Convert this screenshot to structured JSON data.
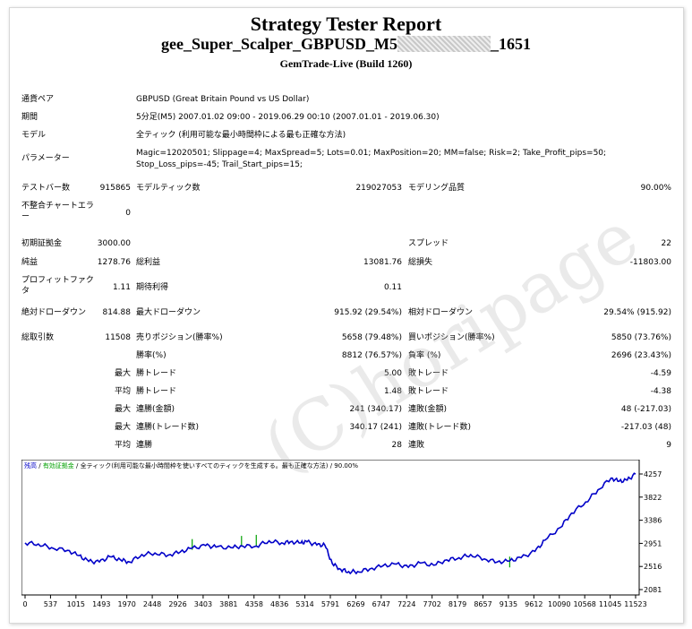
{
  "header": {
    "title": "Strategy Tester Report",
    "ea_name_prefix": "gee_Super_Scalper_GBPUSD_M5",
    "ea_name_suffix": "_1651",
    "build": "GemTrade-Live (Build 1260)"
  },
  "info": {
    "pair_label": "通貨ペア",
    "pair_value": "GBPUSD (Great Britain Pound vs US Dollar)",
    "period_label": "期間",
    "period_value": "5分足(M5) 2007.01.02 09:00 - 2019.06.29 00:10 (2007.01.01 - 2019.06.30)",
    "model_label": "モデル",
    "model_value": "全ティック (利用可能な最小時間枠による最も正確な方法)",
    "params_label": "パラメーター",
    "params_line1": "Magic=12020501; Slippage=4; MaxSpread=5; Lots=0.01; MaxPosition=20; MM=false; Risk=2; Take_Profit_pips=50;",
    "params_line2": "Stop_Loss_pips=-45; Trail_Start_pips=15;"
  },
  "stats": {
    "bars_label": "テストバー数",
    "bars_value": "915865",
    "ticks_label": "モデルティック数",
    "ticks_value": "219027053",
    "quality_label": "モデリング品質",
    "quality_value": "90.00%",
    "mismatch_label": "不整合チャートエラー",
    "mismatch_value": "0",
    "deposit_label": "初期証拠金",
    "deposit_value": "3000.00",
    "spread_label": "スプレッド",
    "spread_value": "22",
    "net_label": "純益",
    "net_value": "1278.76",
    "gross_profit_label": "総利益",
    "gross_profit_value": "13081.76",
    "gross_loss_label": "総損失",
    "gross_loss_value": "-11803.00",
    "pf_label": "プロフィットファクタ",
    "pf_value": "1.11",
    "expected_label": "期待利得",
    "expected_value": "0.11",
    "abs_dd_label": "絶対ドローダウン",
    "abs_dd_value": "814.88",
    "max_dd_label": "最大ドローダウン",
    "max_dd_value": "915.92 (29.54%)",
    "rel_dd_label": "相対ドローダウン",
    "rel_dd_value": "29.54% (915.92)",
    "total_trades_label": "総取引数",
    "total_trades_value": "11508",
    "short_label": "売りポジション(勝率%)",
    "short_value": "5658 (79.48%)",
    "long_label": "買いポジション(勝率%)",
    "long_value": "5850 (73.76%)",
    "win_pct_label": "勝率(%)",
    "win_pct_value": "8812 (76.57%)",
    "loss_pct_label": "負率 (%)",
    "loss_pct_value": "2696 (23.43%)",
    "max_word": "最大",
    "avg_word": "平均",
    "win_trade_label": "勝トレード",
    "max_win_value": "5.00",
    "loss_trade_label": "敗トレード",
    "max_loss_value": "-4.59",
    "avg_win_value": "1.48",
    "avg_loss_value": "-4.38",
    "consec_win_amt_label": "連勝(金額)",
    "consec_win_amt_value": "241 (340.17)",
    "consec_loss_amt_label": "連敗(金額)",
    "consec_loss_amt_value": "48 (-217.03)",
    "consec_win_cnt_label": "連勝(トレード数)",
    "consec_win_cnt_value": "340.17 (241)",
    "consec_loss_cnt_label": "連敗(トレード数)",
    "consec_loss_cnt_value": "-217.03 (48)",
    "avg_consec_win_label": "連勝",
    "avg_consec_win_value": "28",
    "avg_consec_loss_label": "連敗",
    "avg_consec_loss_value": "9"
  },
  "watermark": "(C)horipage",
  "chart_legend": {
    "balance": "残高",
    "sep1": " / ",
    "margin": "有効証拠金",
    "rest": " / 全ティック(利用可能な最小時間枠を使いすべてのティックを生成する。最も正確な方法) / 90.00%"
  },
  "colors": {
    "balance_line": "#0000c8",
    "margin_marks": "#00a000",
    "legend_balance": "#0000c8",
    "legend_margin": "#00a000"
  },
  "chart_data": {
    "type": "line",
    "x_ticks": [
      "0",
      "537",
      "1015",
      "1493",
      "1970",
      "2448",
      "2926",
      "3403",
      "3881",
      "4358",
      "4836",
      "5314",
      "5791",
      "6269",
      "6747",
      "7224",
      "7702",
      "8179",
      "8657",
      "9135",
      "9612",
      "10090",
      "10568",
      "11045",
      "11523"
    ],
    "y_ticks": [
      "4257",
      "3822",
      "3386",
      "2951",
      "2516",
      "2081"
    ],
    "ylim": [
      2081,
      4257
    ],
    "xlim": [
      0,
      11508
    ],
    "series": [
      {
        "name": "残高",
        "x": [
          0,
          250,
          500,
          800,
          1015,
          1200,
          1400,
          1600,
          1800,
          1970,
          2200,
          2448,
          2700,
          2926,
          3150,
          3403,
          3600,
          3881,
          4100,
          4358,
          4600,
          4836,
          5000,
          5200,
          5314,
          5500,
          5650,
          5791,
          5950,
          6100,
          6269,
          6500,
          6747,
          7000,
          7224,
          7450,
          7702,
          7950,
          8179,
          8400,
          8657,
          8900,
          9135,
          9350,
          9612,
          9800,
          10090,
          10300,
          10568,
          10800,
          11045,
          11200,
          11350,
          11508
        ],
        "y": [
          2960,
          2940,
          2870,
          2820,
          2720,
          2610,
          2600,
          2700,
          2640,
          2600,
          2740,
          2770,
          2730,
          2790,
          2860,
          2910,
          2880,
          2870,
          2900,
          2900,
          3000,
          2960,
          2980,
          2960,
          2980,
          2920,
          2920,
          2570,
          2460,
          2420,
          2420,
          2470,
          2530,
          2560,
          2500,
          2580,
          2540,
          2640,
          2680,
          2740,
          2660,
          2600,
          2620,
          2680,
          2800,
          3010,
          3250,
          3520,
          3730,
          3960,
          4180,
          4120,
          4140,
          4257
        ]
      }
    ]
  }
}
